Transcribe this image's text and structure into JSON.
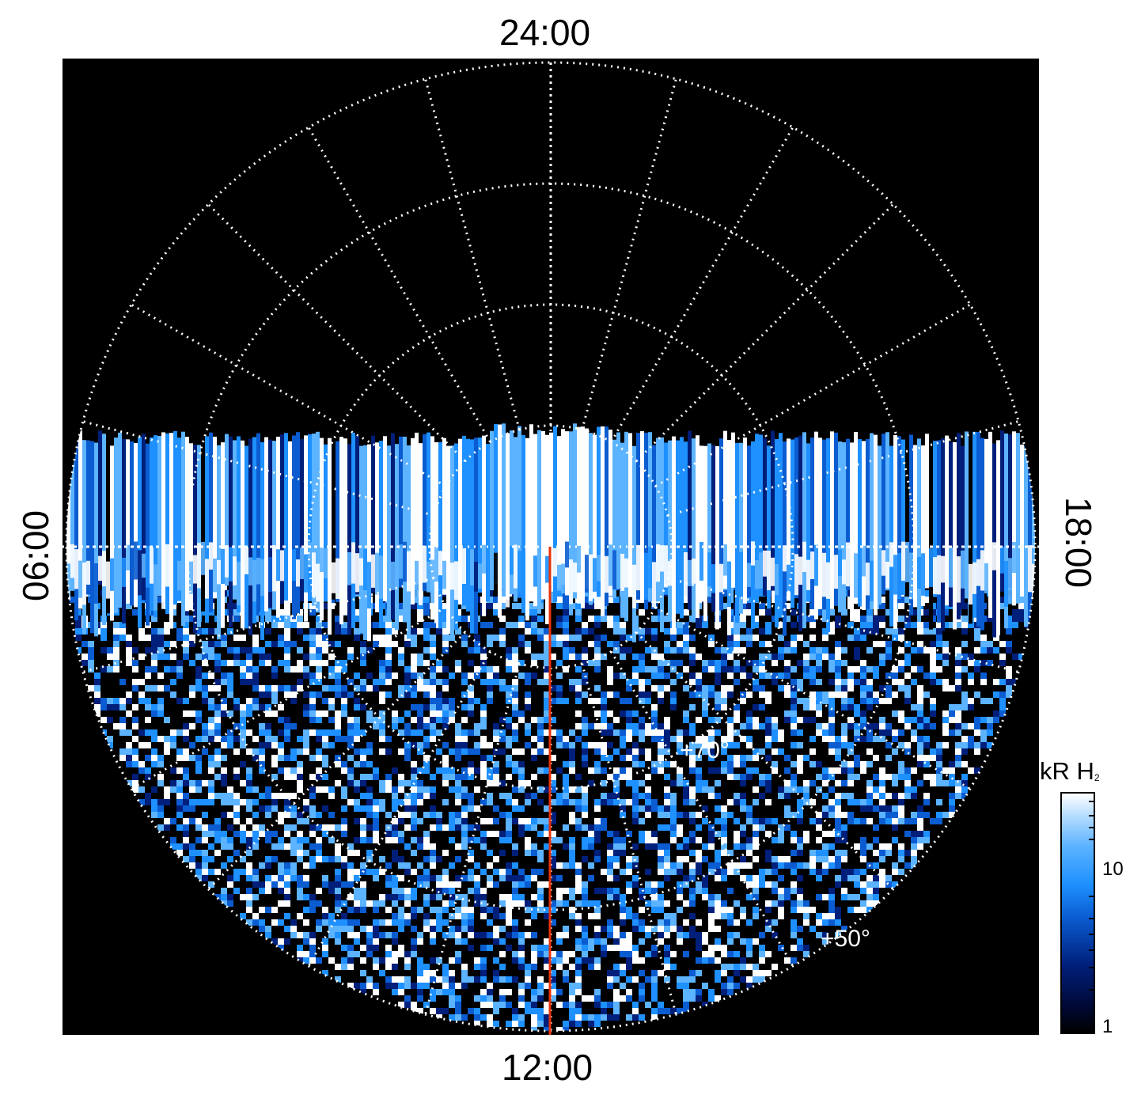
{
  "local_time_labels": {
    "top": "24:00",
    "bottom": "12:00",
    "left": "06:00",
    "right": "18:00"
  },
  "latitude_labels": {
    "inner": "+70°",
    "outer": "+50°"
  },
  "colorbar": {
    "title": "kR H",
    "title_subscript": "2",
    "scale": "log",
    "ticks": [
      "10",
      "1"
    ],
    "colors": [
      "#000000",
      "#001f7a",
      "#0a5cd0",
      "#1e90ff",
      "#5cb3ff",
      "#ffffff"
    ]
  },
  "overlay": {
    "meridian_line_color": "#e8320a",
    "grid_color": "#ffffff"
  }
}
